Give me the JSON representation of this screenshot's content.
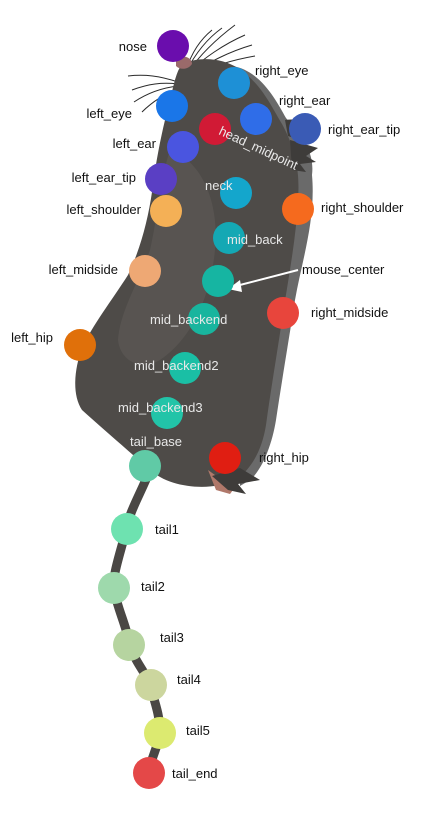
{
  "keypoints": [
    {
      "id": "nose",
      "label": "nose",
      "color": "#6a0dad"
    },
    {
      "id": "right_eye",
      "label": "right_eye",
      "color": "#1e90d6"
    },
    {
      "id": "right_ear",
      "label": "right_ear",
      "color": "#2f6de8"
    },
    {
      "id": "left_eye",
      "label": "left_eye",
      "color": "#1a76e8"
    },
    {
      "id": "head_midpoint",
      "label": "head_midpoint",
      "color": "#d11a35"
    },
    {
      "id": "right_ear_tip",
      "label": "right_ear_tip",
      "color": "#3a5bb5"
    },
    {
      "id": "left_ear",
      "label": "left_ear",
      "color": "#4a55e0"
    },
    {
      "id": "left_ear_tip",
      "label": "left_ear_tip",
      "color": "#5a3fc4"
    },
    {
      "id": "neck",
      "label": "neck",
      "color": "#14a6cc"
    },
    {
      "id": "left_shoulder",
      "label": "left_shoulder",
      "color": "#f4b056"
    },
    {
      "id": "right_shoulder",
      "label": "right_shoulder",
      "color": "#f56a1e"
    },
    {
      "id": "mid_back",
      "label": "mid_back",
      "color": "#14a8b4"
    },
    {
      "id": "left_midside",
      "label": "left_midside",
      "color": "#eea874"
    },
    {
      "id": "mouse_center",
      "label": "mouse_center",
      "color": "#16b5a2"
    },
    {
      "id": "mid_backend",
      "label": "mid_backend",
      "color": "#18b59e"
    },
    {
      "id": "right_midside",
      "label": "right_midside",
      "color": "#e8453c"
    },
    {
      "id": "left_hip",
      "label": "left_hip",
      "color": "#e0700a"
    },
    {
      "id": "mid_backend2",
      "label": "mid_backend2",
      "color": "#1abfa5"
    },
    {
      "id": "mid_backend3",
      "label": "mid_backend3",
      "color": "#22c4a8"
    },
    {
      "id": "tail_base",
      "label": "tail_base",
      "color": "#60caa6"
    },
    {
      "id": "right_hip",
      "label": "right_hip",
      "color": "#e01e12"
    },
    {
      "id": "tail1",
      "label": "tail1",
      "color": "#6ee2b0"
    },
    {
      "id": "tail2",
      "label": "tail2",
      "color": "#9ed9ac"
    },
    {
      "id": "tail3",
      "label": "tail3",
      "color": "#b6d4a0"
    },
    {
      "id": "tail4",
      "label": "tail4",
      "color": "#ccd69e"
    },
    {
      "id": "tail5",
      "label": "tail5",
      "color": "#dcea70"
    },
    {
      "id": "tail_end",
      "label": "tail_end",
      "color": "#e44848"
    }
  ]
}
